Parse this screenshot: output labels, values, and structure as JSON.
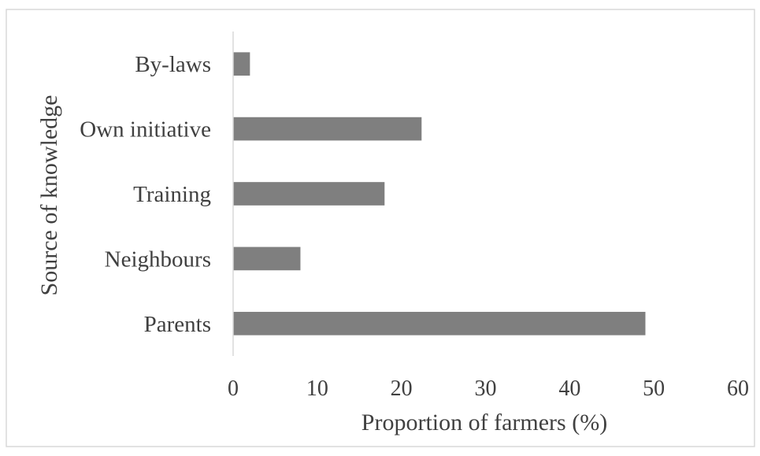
{
  "chart_data": {
    "type": "bar",
    "orientation": "horizontal",
    "title": "",
    "xlabel": "Proportion of farmers  (%)",
    "ylabel": "Source of knowledge",
    "categories": [
      "Parents",
      "Neighbours",
      "Training",
      "Own initiative",
      "By-laws"
    ],
    "values": [
      49,
      8,
      18,
      22.4,
      2
    ],
    "xlim": [
      0,
      60
    ],
    "xticks": [
      "0",
      "10",
      "20",
      "30",
      "40",
      "50",
      "60"
    ],
    "grid": false,
    "legend": "none",
    "bar_color": "#7f7f7f",
    "axis_color": "#d9d9d9",
    "text_color": "#404040"
  }
}
